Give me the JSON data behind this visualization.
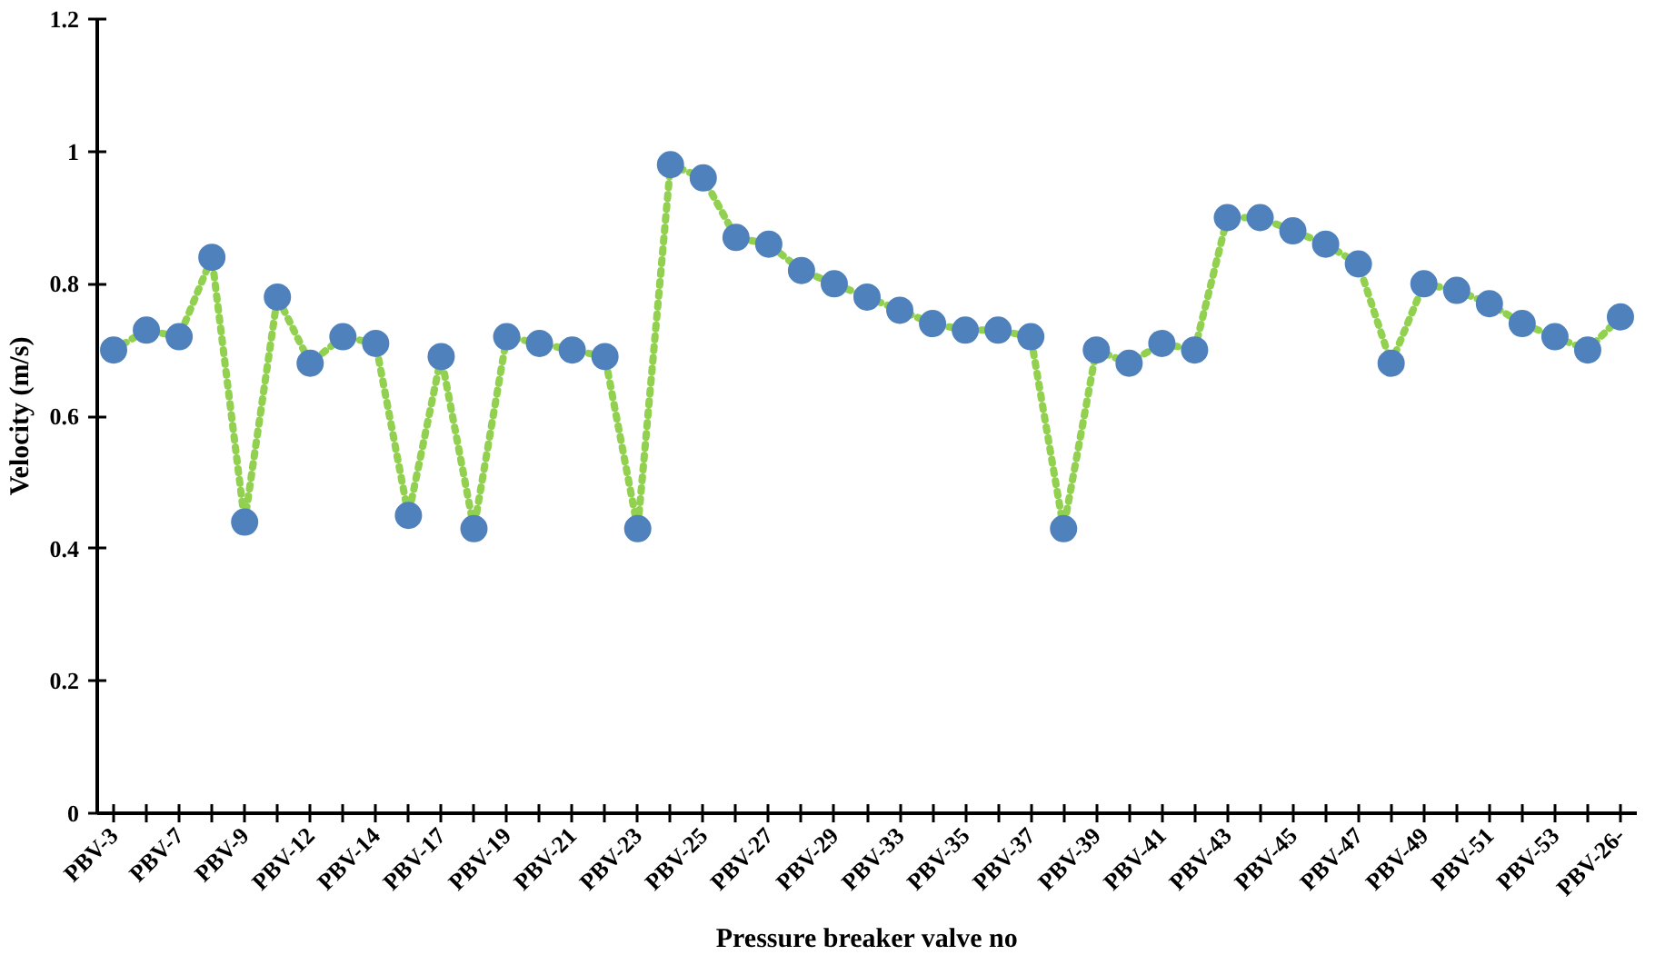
{
  "chart_data": {
    "type": "scatter",
    "xlabel": "Pressure breaker valve no",
    "ylabel": "Velocity (m/s)",
    "categories": [
      "PBV-3",
      null,
      "PBV-7",
      null,
      "PBV-9",
      null,
      "PBV-12",
      null,
      "PBV-14",
      null,
      "PBV-17",
      null,
      "PBV-19",
      null,
      "PBV-21",
      null,
      "PBV-23",
      null,
      "PBV-25",
      null,
      "PBV-27",
      null,
      "PBV-29",
      null,
      "PBV-33",
      null,
      "PBV-35",
      null,
      "PBV-37",
      null,
      "PBV-39",
      null,
      "PBV-41",
      null,
      "PBV-43",
      null,
      "PBV-45",
      null,
      "PBV-47",
      null,
      "PBV-49",
      null,
      "PBV-51",
      null,
      "PBV-53",
      null,
      "PBV-26-"
    ],
    "series": [
      {
        "type": "line",
        "marker": "none",
        "color": "#92d050",
        "values": [
          0.7,
          0.73,
          0.72,
          0.84,
          0.44,
          0.78,
          0.68,
          0.72,
          0.71,
          0.45,
          0.69,
          0.43,
          0.72,
          0.71,
          0.7,
          0.69,
          0.43,
          0.98,
          0.96,
          0.87,
          0.86,
          0.82,
          0.8,
          0.78,
          0.76,
          0.74,
          0.73,
          0.73,
          0.72,
          0.43,
          0.7,
          0.68,
          0.71,
          0.7,
          0.9,
          0.9,
          0.88,
          0.86,
          0.83,
          0.68,
          0.8,
          0.79,
          0.77,
          0.74,
          0.72,
          0.7,
          0.75
        ]
      },
      {
        "color": "#4f81bd",
        "values": [
          0.7,
          0.73,
          0.72,
          0.84,
          0.44,
          0.78,
          0.68,
          0.72,
          0.71,
          0.45,
          0.69,
          0.43,
          0.72,
          0.71,
          0.7,
          0.69,
          0.43,
          0.98,
          0.96,
          0.87,
          0.86,
          0.82,
          0.8,
          0.78,
          0.76,
          0.74,
          0.73,
          0.73,
          0.72,
          0.43,
          0.7,
          0.68,
          0.71,
          0.7,
          0.9,
          0.9,
          0.88,
          0.86,
          0.83,
          0.68,
          0.8,
          0.79,
          0.77,
          0.74,
          0.72,
          0.7,
          0.75
        ]
      }
    ],
    "ylim": [
      0,
      1.2
    ],
    "yticks": [
      0,
      0.2,
      0.4,
      0.6,
      0.8,
      1,
      1.2
    ],
    "grid": false,
    "marker": "circle",
    "line_style": "dotted"
  }
}
